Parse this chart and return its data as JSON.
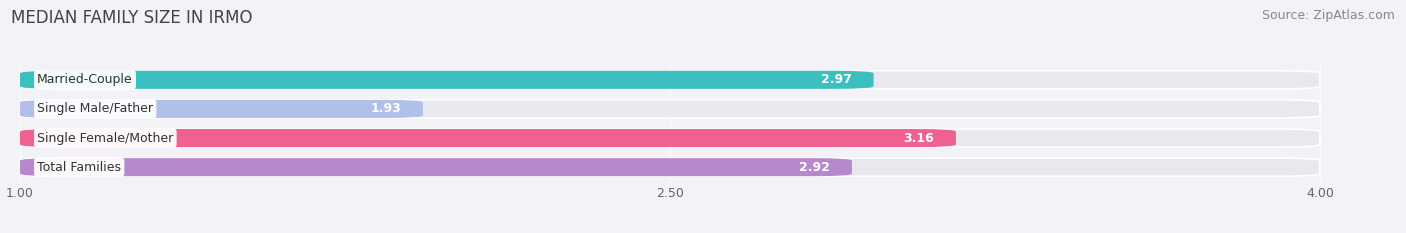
{
  "title": "MEDIAN FAMILY SIZE IN IRMO",
  "source": "Source: ZipAtlas.com",
  "categories": [
    "Married-Couple",
    "Single Male/Father",
    "Single Female/Mother",
    "Total Families"
  ],
  "values": [
    2.97,
    1.93,
    3.16,
    2.92
  ],
  "bar_colors": [
    "#3bbfbf",
    "#b0c0e8",
    "#f06090",
    "#b888cc"
  ],
  "bar_bg_color": "#e8e8ee",
  "xmin": 1.0,
  "xmax": 4.0,
  "xticks": [
    1.0,
    2.5,
    4.0
  ],
  "xtick_labels": [
    "1.00",
    "2.50",
    "4.00"
  ],
  "value_color_inside": "#ffffff",
  "value_color_outside": "#999999",
  "title_fontsize": 12,
  "source_fontsize": 9,
  "bar_height": 0.62,
  "background_color": "#f2f2f7",
  "bar_gap": 0.18,
  "label_fontsize": 9,
  "value_fontsize": 9
}
